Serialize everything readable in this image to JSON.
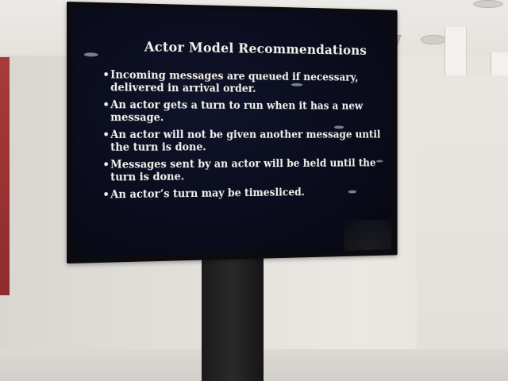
{
  "slide": {
    "title": "Actor Model Recommendations",
    "bullet_glyph": "•",
    "bullets": [
      "Incoming messages are queued if necessary, delivered in arrival order.",
      "An actor gets a turn to run when it has a new message.",
      "An actor will not be given another message until the turn is done.",
      "Messages sent by an actor will be held until the turn is done.",
      "An actor’s turn may be timesliced."
    ]
  },
  "colors": {
    "screen_background": "#0a0c1c",
    "slide_text": "#f4f2ec",
    "wall": "#e4e1dc",
    "stand": "#1a1a1a",
    "left_panel": "#a83a3a"
  }
}
